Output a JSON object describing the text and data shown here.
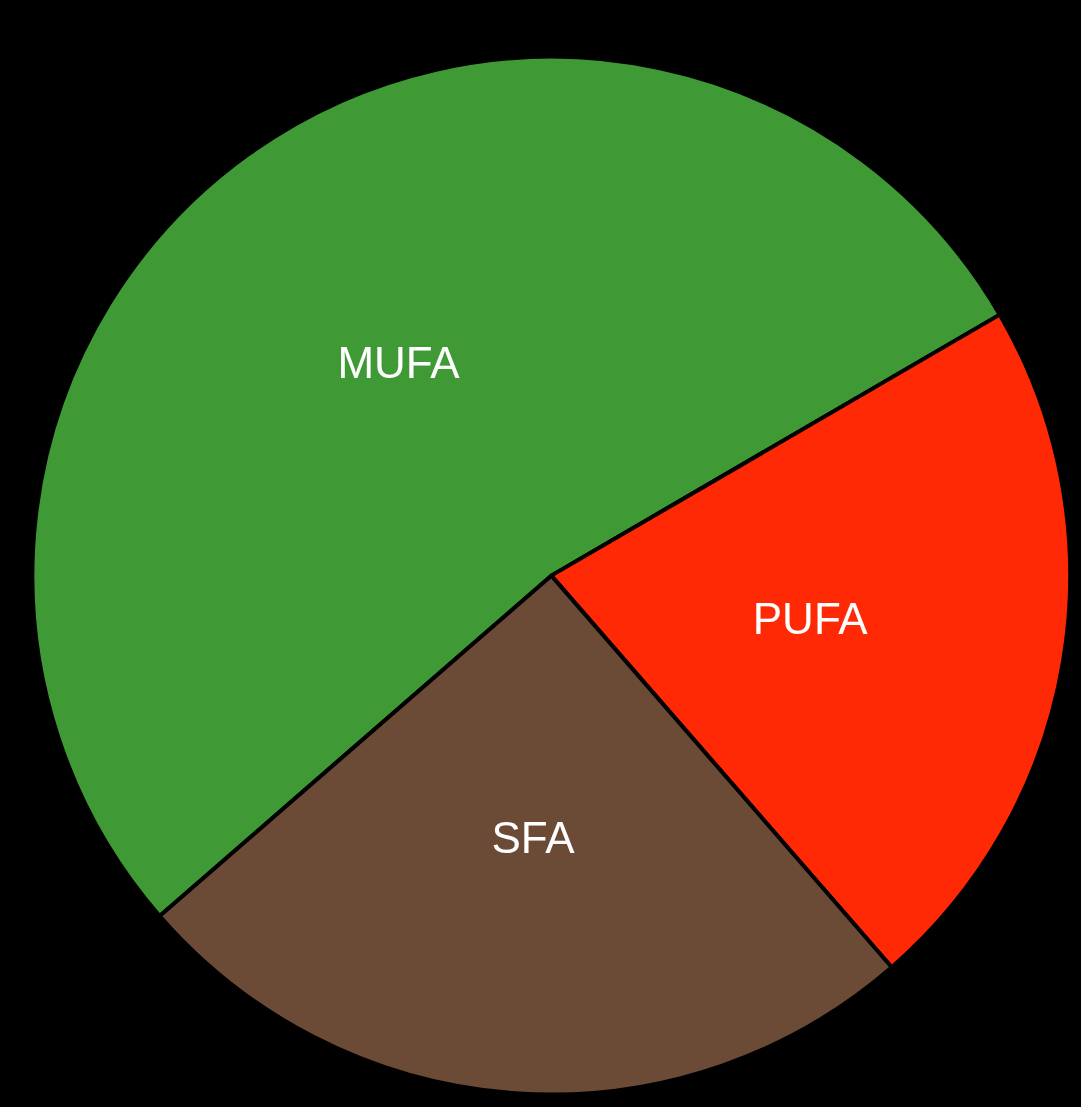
{
  "chart_data": {
    "type": "pie",
    "categories": [
      "MUFA",
      "PUFA",
      "SFA"
    ],
    "values": [
      53,
      22,
      25
    ],
    "colors": [
      "#3f9a35",
      "#ff2a05",
      "#6b4a36"
    ]
  }
}
